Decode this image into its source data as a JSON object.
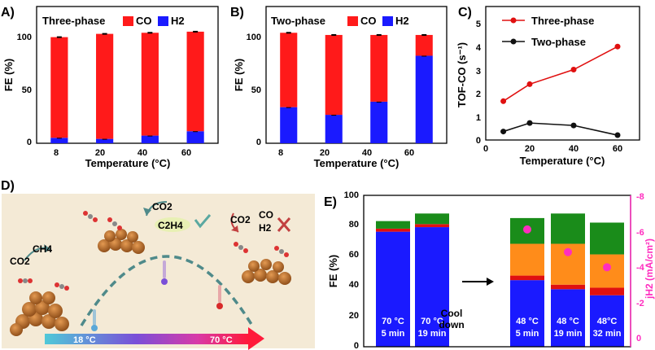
{
  "panel_labels": [
    "A)",
    "B)",
    "C)",
    "D)",
    "E)"
  ],
  "colors": {
    "co": "#ff1a1a",
    "h2": "#1a1aff",
    "three": "#e01010",
    "two": "#111111",
    "green": "#1a8c1a",
    "orange": "#ff8c1a",
    "red": "#e01010",
    "magenta": "#ff2dbf",
    "blue": "#1a1aff"
  },
  "chart_data": [
    {
      "id": "A",
      "type": "bar",
      "stacked": true,
      "title": "Three-phase",
      "legend": [
        {
          "name": "CO",
          "color": "#ff1a1a"
        },
        {
          "name": "H2",
          "color": "#1a1aff"
        }
      ],
      "categories": [
        "8",
        "20",
        "40",
        "60"
      ],
      "series": [
        {
          "name": "H2",
          "values": [
            5,
            4,
            7,
            11
          ]
        },
        {
          "name": "CO",
          "values": [
            92,
            96,
            94,
            91
          ]
        }
      ],
      "xlabel": "Temperature (°C)",
      "ylabel": "FE (%)",
      "ylim": [
        0,
        125
      ],
      "yticks": [
        "0",
        "50",
        "100"
      ]
    },
    {
      "id": "B",
      "type": "bar",
      "stacked": true,
      "title": "Two-phase",
      "legend": [
        {
          "name": "CO",
          "color": "#ff1a1a"
        },
        {
          "name": "H2",
          "color": "#1a1aff"
        }
      ],
      "categories": [
        "8",
        "20",
        "40",
        "60"
      ],
      "series": [
        {
          "name": "H2",
          "values": [
            33,
            26,
            38,
            80
          ]
        },
        {
          "name": "CO",
          "values": [
            68,
            73,
            61,
            19
          ]
        }
      ],
      "xlabel": "Temperature (°C)",
      "ylabel": "FE (%)",
      "ylim": [
        0,
        125
      ],
      "yticks": [
        "0",
        "50",
        "100"
      ]
    },
    {
      "id": "C",
      "type": "line",
      "x": [
        8,
        20,
        40,
        60
      ],
      "series": [
        {
          "name": "Three-phase",
          "values": [
            1.6,
            2.3,
            2.9,
            3.85
          ]
        },
        {
          "name": "Two-phase",
          "values": [
            0.35,
            0.7,
            0.6,
            0.2
          ]
        }
      ],
      "xlabel": "Temperature (°C)",
      "ylabel": "TOF-CO (s⁻¹)",
      "xlim": [
        0,
        70
      ],
      "ylim": [
        0,
        5.5
      ],
      "xticks": [
        "0",
        "20",
        "40",
        "60"
      ],
      "yticks": [
        "0",
        "1",
        "2",
        "3",
        "4",
        "5"
      ]
    },
    {
      "id": "E",
      "type": "bar",
      "stacked": true,
      "categories": [
        {
          "temp": "70 °C",
          "time": "5 min"
        },
        {
          "temp": "70 °C",
          "time": "19 min"
        },
        {
          "temp": "48 °C",
          "time": "5 min"
        },
        {
          "temp": "48 °C",
          "time": "19 min"
        },
        {
          "temp": "48°C",
          "time": "32 min"
        }
      ],
      "series": [
        {
          "name": "blue",
          "values": [
            76,
            79,
            44,
            38,
            34
          ]
        },
        {
          "name": "red",
          "values": [
            2,
            2,
            3,
            3,
            5
          ]
        },
        {
          "name": "orange",
          "values": [
            0,
            0,
            21,
            27,
            22
          ]
        },
        {
          "name": "green",
          "values": [
            5,
            7,
            17,
            20,
            21
          ]
        }
      ],
      "j_h2": [
        null,
        null,
        -6.2,
        -5.0,
        -4.2
      ],
      "ylabel": "FE (%)",
      "y2label": "jH2 (mA/cm²)",
      "ylim": [
        0,
        100
      ],
      "yticks": [
        "0",
        "20",
        "40",
        "60",
        "80",
        "100"
      ],
      "y2lim": [
        0,
        -8
      ],
      "y2ticks": [
        "0",
        "-2",
        "-4",
        "-6",
        "-8"
      ],
      "annotation": {
        "line1": "Cool",
        "line2": "down"
      }
    }
  ],
  "scheme": {
    "labels": {
      "co2_left": "CO2",
      "ch4": "CH4",
      "co2_top": "CO2",
      "c2h4": "C2H4",
      "co2_right": "CO2",
      "co_right": "CO",
      "h2_right": "H2"
    },
    "temp_low": "18 °C",
    "temp_high": "70 °C"
  }
}
